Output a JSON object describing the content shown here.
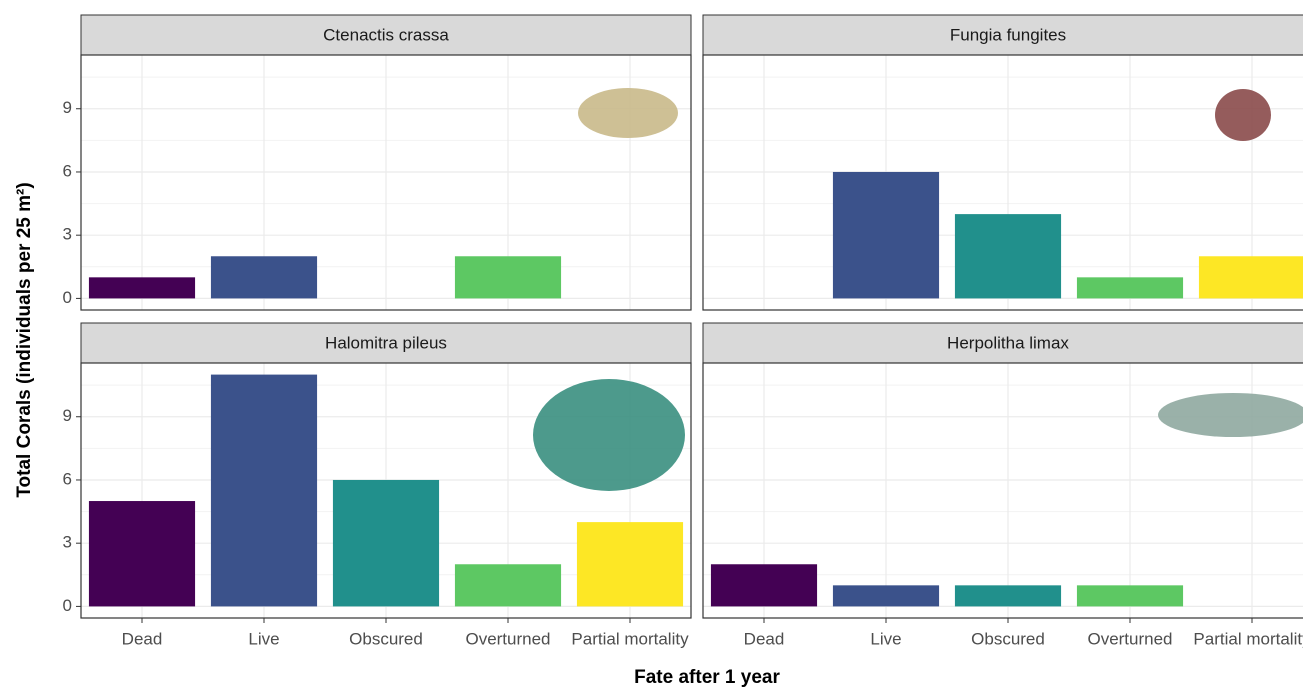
{
  "ylabel": "Total Corals (individuals per 25 m²)",
  "xlabel": "Fate after 1 year",
  "chart_data": [
    {
      "type": "bar",
      "title": "Ctenactis crassa",
      "categories": [
        "Dead",
        "Live",
        "Obscured",
        "Overturned",
        "Partial mortality"
      ],
      "values": [
        1,
        2,
        null,
        2,
        null
      ],
      "colors": [
        "#440154",
        "#3b528b",
        "#21908c",
        "#5dc863",
        "#fde725"
      ],
      "ylim": [
        -0.55,
        11.55
      ],
      "yticks": [
        0,
        3,
        6,
        9
      ],
      "grid": true
    },
    {
      "type": "bar",
      "title": "Fungia fungites",
      "categories": [
        "Dead",
        "Live",
        "Obscured",
        "Overturned",
        "Partial mortality"
      ],
      "values": [
        null,
        6,
        4,
        1,
        2
      ],
      "colors": [
        "#440154",
        "#3b528b",
        "#21908c",
        "#5dc863",
        "#fde725"
      ],
      "ylim": [
        -0.55,
        11.55
      ],
      "yticks": [
        0,
        3,
        6,
        9
      ],
      "grid": true
    },
    {
      "type": "bar",
      "title": "Halomitra pileus",
      "categories": [
        "Dead",
        "Live",
        "Obscured",
        "Overturned",
        "Partial mortality"
      ],
      "values": [
        5,
        11,
        6,
        2,
        4
      ],
      "colors": [
        "#440154",
        "#3b528b",
        "#21908c",
        "#5dc863",
        "#fde725"
      ],
      "ylim": [
        -0.55,
        11.55
      ],
      "yticks": [
        0,
        3,
        6,
        9
      ],
      "grid": true
    },
    {
      "type": "bar",
      "title": "Herpolitha limax",
      "categories": [
        "Dead",
        "Live",
        "Obscured",
        "Overturned",
        "Partial mortality"
      ],
      "values": [
        2,
        1,
        1,
        1,
        null
      ],
      "colors": [
        "#440154",
        "#3b528b",
        "#21908c",
        "#5dc863",
        "#fde725"
      ],
      "ylim": [
        -0.55,
        11.55
      ],
      "yticks": [
        0,
        3,
        6,
        9
      ],
      "grid": true
    }
  ]
}
